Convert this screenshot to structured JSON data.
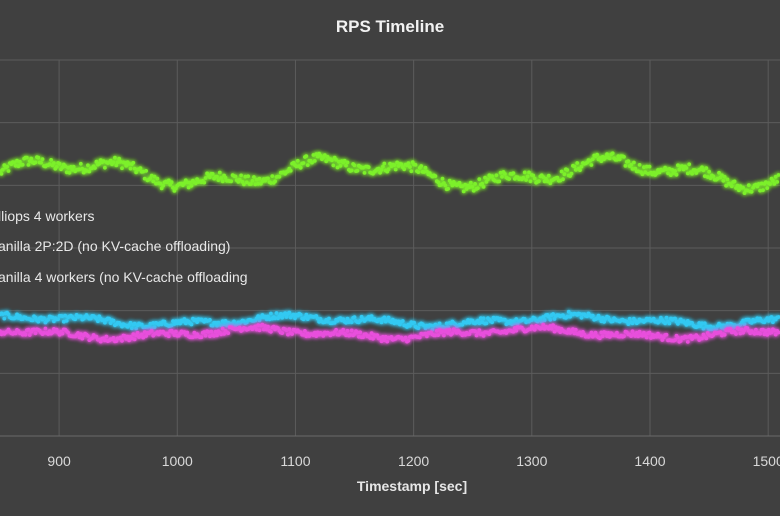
{
  "chart_data": {
    "type": "scatter",
    "title": "RPS Timeline",
    "xlabel": "Timestamp [sec]",
    "ylabel": "",
    "xlim": [
      850,
      1510
    ],
    "ylim": [
      0,
      3
    ],
    "x_ticks": [
      900,
      1000,
      1100,
      1200,
      1300,
      1400,
      1500
    ],
    "x_tick_labels": [
      "900",
      "1000",
      "1100",
      "1200",
      "1300",
      "1400",
      "1500"
    ],
    "y_gridlines": [
      0.5,
      1.0,
      1.5,
      2.0,
      2.5,
      3.0
    ],
    "grid": true,
    "legend_position": "left",
    "legend_entries_visible": [
      "lliops 4 workers",
      "anilla 2P:2D  (no KV-cache offloading)",
      "anilla 4 workers (no KV-cache offloading"
    ],
    "series": [
      {
        "name": "lliops 4 workers",
        "color": "#7cf02a",
        "glow": "#3fd11a",
        "base": 2.1,
        "amplitude": 0.08,
        "noise": 0.04
      },
      {
        "name": "anilla 2P:2D  (no KV-cache offloading)",
        "color": "#33c9f2",
        "glow": "#17a6de",
        "base": 0.92,
        "amplitude": 0.03,
        "noise": 0.025
      },
      {
        "name": "anilla 4 workers (no KV-cache offloading",
        "color": "#e84fdc",
        "glow": "#c42cc0",
        "base": 0.82,
        "amplitude": 0.03,
        "noise": 0.025
      }
    ]
  }
}
